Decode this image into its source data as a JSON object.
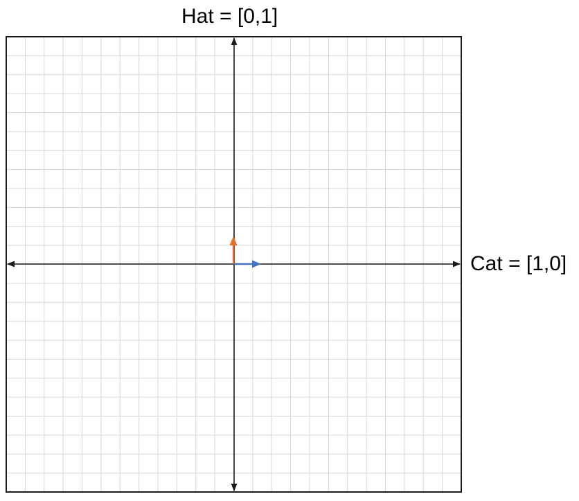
{
  "diagram": {
    "y_axis_label": "Hat = [0,1]",
    "x_axis_label": "Cat = [1,0]",
    "colors": {
      "grid": "#d6d6d6",
      "frame": "#1a1a1a",
      "axis": "#1a1a1a",
      "hat_vector": "#e8702a",
      "cat_vector": "#4472c4"
    },
    "vectors": [
      {
        "name": "hat",
        "components": [
          0,
          1
        ]
      },
      {
        "name": "cat",
        "components": [
          1,
          0
        ]
      }
    ]
  }
}
